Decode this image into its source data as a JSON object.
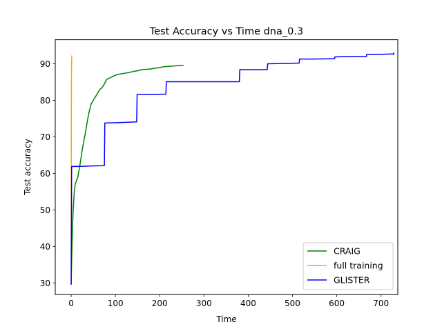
{
  "chart_data": {
    "type": "line",
    "title": "Test Accuracy vs Time dna_0.3",
    "xlabel": "Time",
    "ylabel": "Test accuracy",
    "xlim": [
      -36,
      738
    ],
    "ylim": [
      26.8,
      96.6
    ],
    "xticks": [
      0,
      100,
      200,
      300,
      400,
      500,
      600,
      700
    ],
    "yticks": [
      30,
      40,
      50,
      60,
      70,
      80,
      90
    ],
    "grid": false,
    "legend_position": "lower-right",
    "series": [
      {
        "name": "CRAIG",
        "color": "#008000",
        "x": [
          0,
          1,
          2,
          3,
          5,
          7,
          9,
          12,
          15,
          18,
          22,
          25,
          28,
          32,
          36,
          40,
          45,
          50,
          55,
          60,
          65,
          70,
          75,
          80,
          85,
          90,
          95,
          100,
          110,
          120,
          130,
          140,
          150,
          160,
          170,
          180,
          190,
          200,
          210,
          220,
          230,
          240,
          254
        ],
        "y": [
          29.8,
          36,
          41,
          45.5,
          51,
          55,
          57,
          58,
          59,
          61,
          64,
          66.5,
          68.5,
          71,
          74,
          76.5,
          79,
          80,
          81,
          82,
          83,
          83.5,
          84.5,
          85.7,
          86,
          86.3,
          86.6,
          86.9,
          87.2,
          87.4,
          87.6,
          87.9,
          88.1,
          88.4,
          88.5,
          88.6,
          88.8,
          89.0,
          89.2,
          89.3,
          89.4,
          89.5,
          89.6
        ]
      },
      {
        "name": "full training",
        "color": "#FFA500",
        "x": [
          0,
          0.2,
          0.4,
          0.6,
          0.8,
          1.0,
          1.2,
          1.4,
          1.6
        ],
        "y": [
          29.7,
          62,
          78,
          85,
          88.5,
          90.5,
          91.5,
          92.0,
          92.3
        ]
      },
      {
        "name": "GLISTER",
        "color": "#0000FF",
        "x": [
          0,
          1,
          2,
          10,
          40,
          75,
          76,
          110,
          148,
          149,
          180,
          214,
          215,
          250,
          380,
          381,
          410,
          443,
          444,
          480,
          515,
          516,
          550,
          595,
          596,
          630,
          667,
          668,
          700,
          727,
          728,
          729
        ],
        "y": [
          29.5,
          61.8,
          61.9,
          61.9,
          62.0,
          62.1,
          73.8,
          73.9,
          74.1,
          81.6,
          81.6,
          81.7,
          85.1,
          85.1,
          85.1,
          88.4,
          88.4,
          88.4,
          90.0,
          90.1,
          90.2,
          91.3,
          91.3,
          91.4,
          91.9,
          92.0,
          92.0,
          92.6,
          92.6,
          92.7,
          92.6,
          93.1
        ]
      }
    ]
  }
}
